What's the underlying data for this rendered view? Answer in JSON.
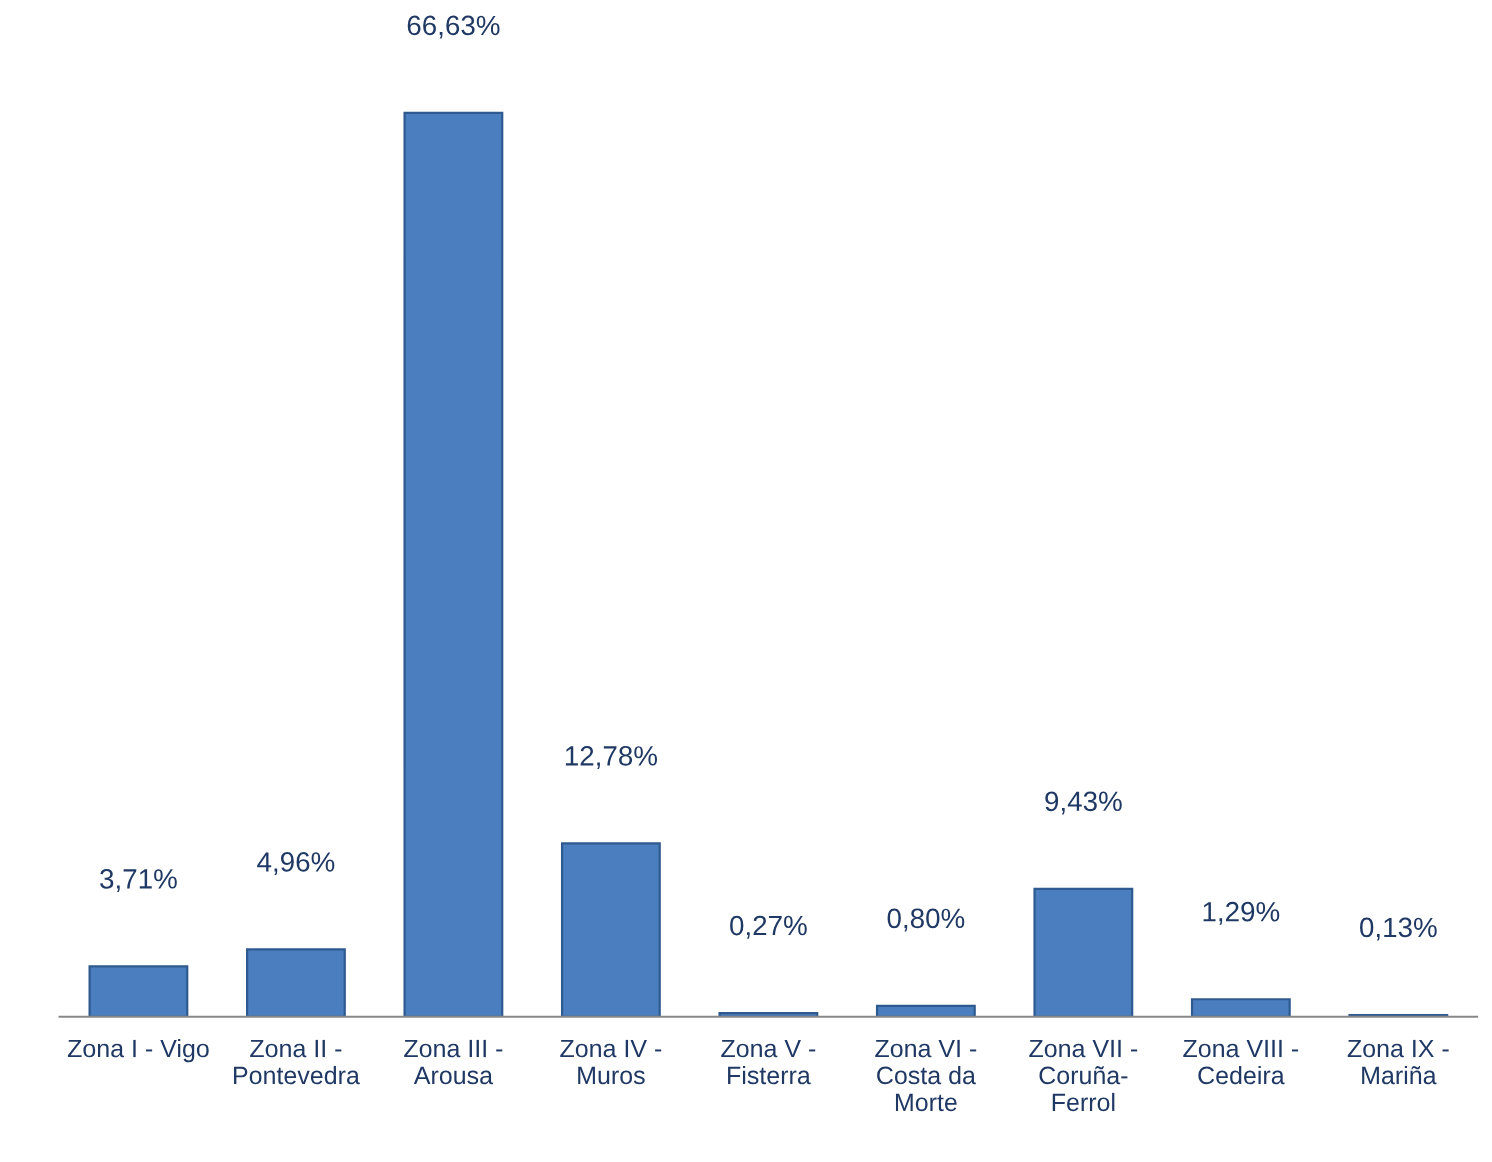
{
  "chart_data": {
    "type": "bar",
    "categories": [
      "Zona I - Vigo",
      "Zona II -\nPontevedra",
      "Zona III -\nArousa",
      "Zona IV -\nMuros",
      "Zona V -\nFisterra",
      "Zona VI -\nCosta da\nMorte",
      "Zona VII -\nCoruña-\nFerrol",
      "Zona VIII -\nCedeira",
      "Zona IX -\nMariña"
    ],
    "values": [
      3.71,
      4.96,
      66.63,
      12.78,
      0.27,
      0.8,
      9.43,
      1.29,
      0.13
    ],
    "value_labels": [
      "3,71%",
      "4,96%",
      "66,63%",
      "12,78%",
      "0,27%",
      "0,80%",
      "9,43%",
      "1,29%",
      "0,13%"
    ],
    "color": "#4a7ebf",
    "grid": false,
    "legend": false
  }
}
